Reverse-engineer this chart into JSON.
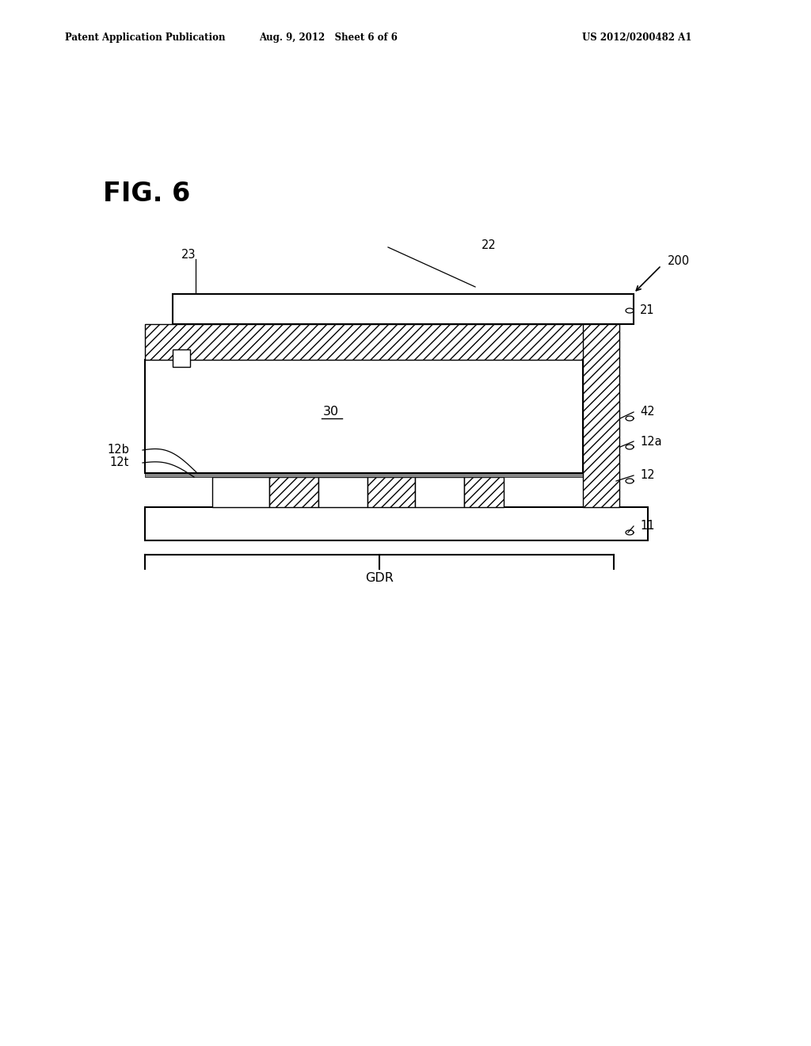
{
  "bg_color": "#ffffff",
  "header_left": "Patent Application Publication",
  "header_mid": "Aug. 9, 2012   Sheet 6 of 6",
  "header_right": "US 2012/0200482 A1",
  "fig_label": "FIG. 6",
  "ref_200": "200",
  "ref_22": "22",
  "ref_23": "23",
  "ref_21": "21",
  "ref_42": "42",
  "ref_12a": "12a",
  "ref_12b": "12b",
  "ref_12t": "12t",
  "ref_12": "12",
  "ref_11": "11",
  "ref_30": "30",
  "ref_GDR": "GDR"
}
